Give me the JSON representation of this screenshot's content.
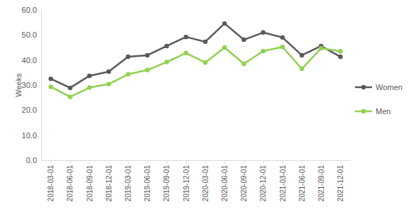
{
  "chart_data": {
    "type": "line",
    "y_label": "Weeks",
    "categories": [
      "2018-03-01",
      "2018-06-01",
      "2018-09-01",
      "2018-12-01",
      "2019-03-01",
      "2019-06-01",
      "2019-09-01",
      "2019-12-01",
      "2020-03-01",
      "2020-06-01",
      "2020-09-01",
      "2020-12-01",
      "2021-03-01",
      "2021-06-01",
      "2021-09-01",
      "2021-12-01"
    ],
    "series": [
      {
        "name": "Women",
        "color": "#595959",
        "marker": "circle",
        "values": [
          32.5,
          28.9,
          33.7,
          35.4,
          41.3,
          41.9,
          45.6,
          49.2,
          47.3,
          54.6,
          48.1,
          51.0,
          49.0,
          41.9,
          45.6,
          41.3
        ]
      },
      {
        "name": "Men",
        "color": "#92d050",
        "marker": "circle",
        "values": [
          29.3,
          25.3,
          29.0,
          30.4,
          34.3,
          36.0,
          39.2,
          42.8,
          39.0,
          45.0,
          38.5,
          43.6,
          45.2,
          36.5,
          44.7,
          43.5
        ]
      }
    ],
    "ylim": [
      0,
      60
    ],
    "yticks": [
      {
        "value": 0,
        "label": "0.0"
      },
      {
        "value": 10,
        "label": "10.0"
      },
      {
        "value": 20,
        "label": "20.0"
      },
      {
        "value": 30,
        "label": "30.0"
      },
      {
        "value": 40,
        "label": "40.0"
      },
      {
        "value": 50,
        "label": "50.0"
      },
      {
        "value": 60,
        "label": "60.0"
      }
    ],
    "grid": false,
    "legend": "right"
  }
}
